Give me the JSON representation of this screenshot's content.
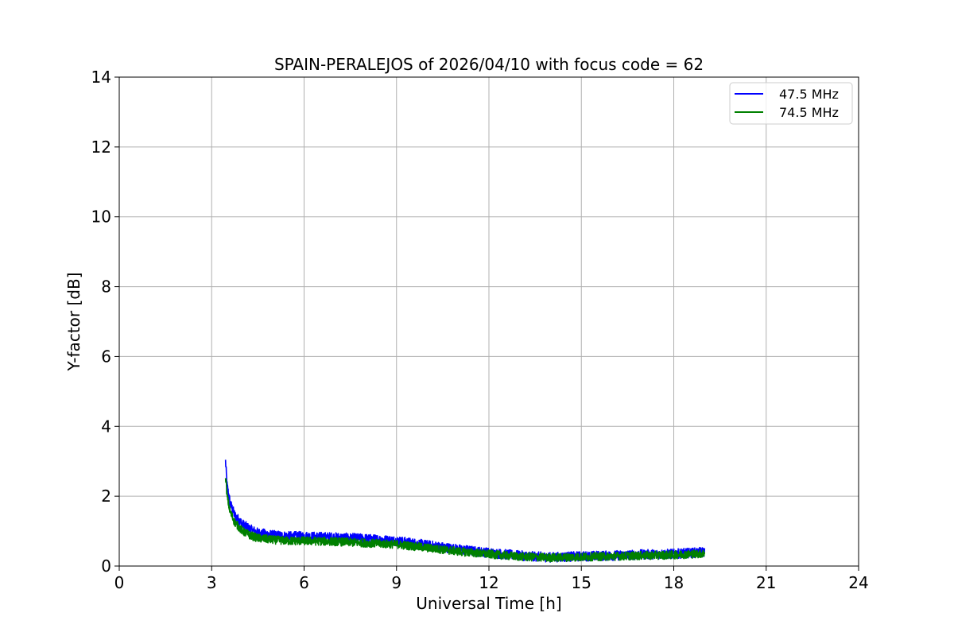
{
  "chart_data": {
    "type": "line",
    "title": "SPAIN-PERALEJOS of 2026/04/10 with focus code = 62",
    "xlabel": "Universal Time [h]",
    "ylabel": "Y-factor [dB]",
    "xlim": [
      0,
      24
    ],
    "ylim": [
      0,
      14
    ],
    "xticks": [
      0,
      3,
      6,
      9,
      12,
      15,
      18,
      21,
      24
    ],
    "yticks": [
      0,
      2,
      4,
      6,
      8,
      10,
      12,
      14
    ],
    "xtick_labels": [
      "0",
      "3",
      "6",
      "9",
      "12",
      "15",
      "18",
      "21",
      "24"
    ],
    "ytick_labels": [
      "0",
      "2",
      "4",
      "6",
      "8",
      "10",
      "12",
      "14"
    ],
    "grid": true,
    "legend_position": "top-right",
    "series": [
      {
        "name": "47.5 MHz",
        "color": "#0000ff",
        "x": [
          3.45,
          3.5,
          3.6,
          3.75,
          4.0,
          4.25,
          4.5,
          5.0,
          5.5,
          6.0,
          7.0,
          8.0,
          9.0,
          10.0,
          11.0,
          12.0,
          13.0,
          14.0,
          15.0,
          16.0,
          17.0,
          18.0,
          19.0
        ],
        "y": [
          3.0,
          2.3,
          1.8,
          1.45,
          1.2,
          1.05,
          0.95,
          0.88,
          0.85,
          0.85,
          0.82,
          0.78,
          0.72,
          0.6,
          0.48,
          0.38,
          0.3,
          0.25,
          0.28,
          0.3,
          0.33,
          0.35,
          0.4
        ]
      },
      {
        "name": "74.5 MHz",
        "color": "#008000",
        "x": [
          3.45,
          3.5,
          3.6,
          3.75,
          4.0,
          4.25,
          4.5,
          5.0,
          5.5,
          6.0,
          7.0,
          8.0,
          9.0,
          10.0,
          11.0,
          12.0,
          13.0,
          14.0,
          15.0,
          16.0,
          17.0,
          18.0,
          19.0
        ],
        "y": [
          2.6,
          2.0,
          1.55,
          1.25,
          1.0,
          0.88,
          0.8,
          0.75,
          0.72,
          0.72,
          0.7,
          0.66,
          0.62,
          0.52,
          0.42,
          0.34,
          0.27,
          0.24,
          0.26,
          0.28,
          0.3,
          0.32,
          0.36
        ]
      }
    ]
  }
}
